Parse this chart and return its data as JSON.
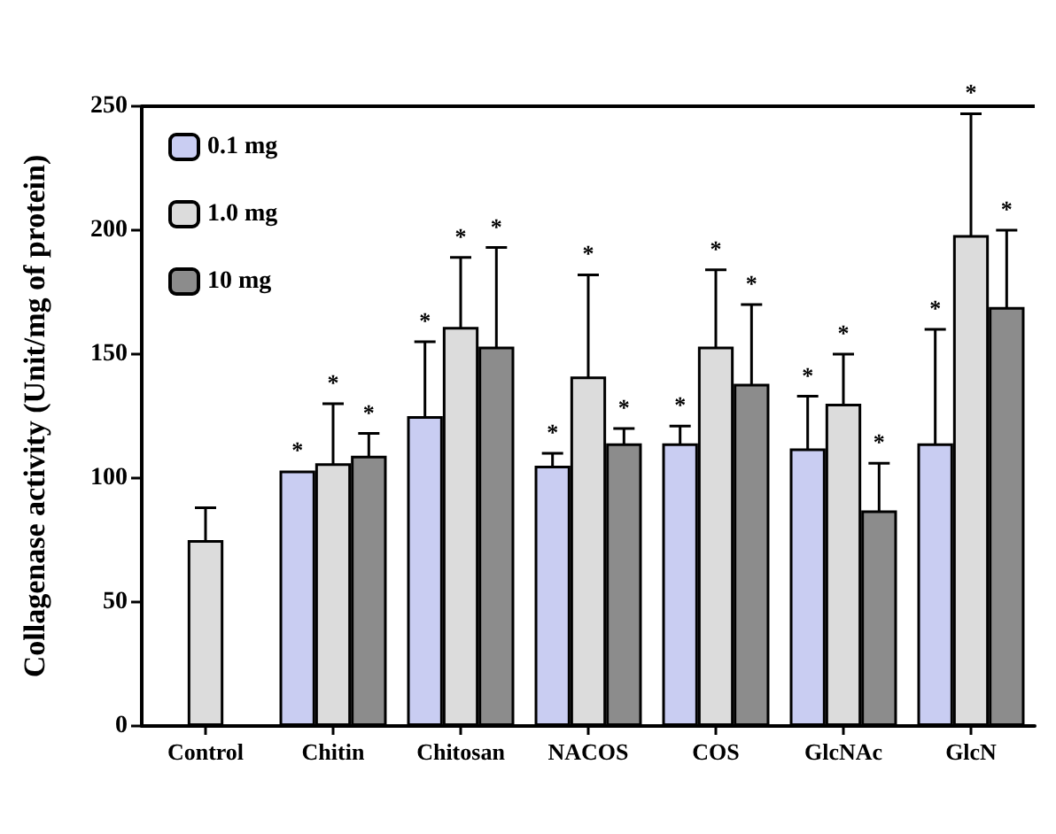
{
  "chart_data": {
    "type": "bar",
    "ylabel": "Collagenase activity (Unit/mg of protein)",
    "categories": [
      "Control",
      "Chitin",
      "Chitosan",
      "NACOS",
      "COS",
      "GlcNAc",
      "GlcN"
    ],
    "series": [
      {
        "name": "0.1 mg",
        "color": "#c9cdf2",
        "values": [
          null,
          103,
          125,
          105,
          114,
          112,
          114
        ],
        "errors": [
          null,
          null,
          30,
          5,
          7,
          21,
          46
        ]
      },
      {
        "name": "1.0 mg",
        "color": "#dcdcdc",
        "values": [
          75,
          106,
          161,
          141,
          153,
          130,
          198
        ],
        "errors": [
          13,
          24,
          28,
          41,
          31,
          20,
          49
        ]
      },
      {
        "name": "10 mg",
        "color": "#8c8c8c",
        "values": [
          null,
          109,
          153,
          114,
          138,
          87,
          169
        ],
        "errors": [
          null,
          9,
          40,
          6,
          32,
          19,
          31
        ]
      }
    ],
    "ylim": [
      0,
      250
    ],
    "yticks": [
      0,
      50,
      100,
      150,
      200,
      250
    ],
    "grid": false,
    "legend": "top left",
    "annotations": [
      "*",
      "*",
      "*",
      "*",
      "*",
      "*",
      "*",
      "*",
      "*",
      "*",
      "*",
      "*",
      "*",
      "*",
      "*",
      "*",
      "*",
      "*"
    ]
  }
}
